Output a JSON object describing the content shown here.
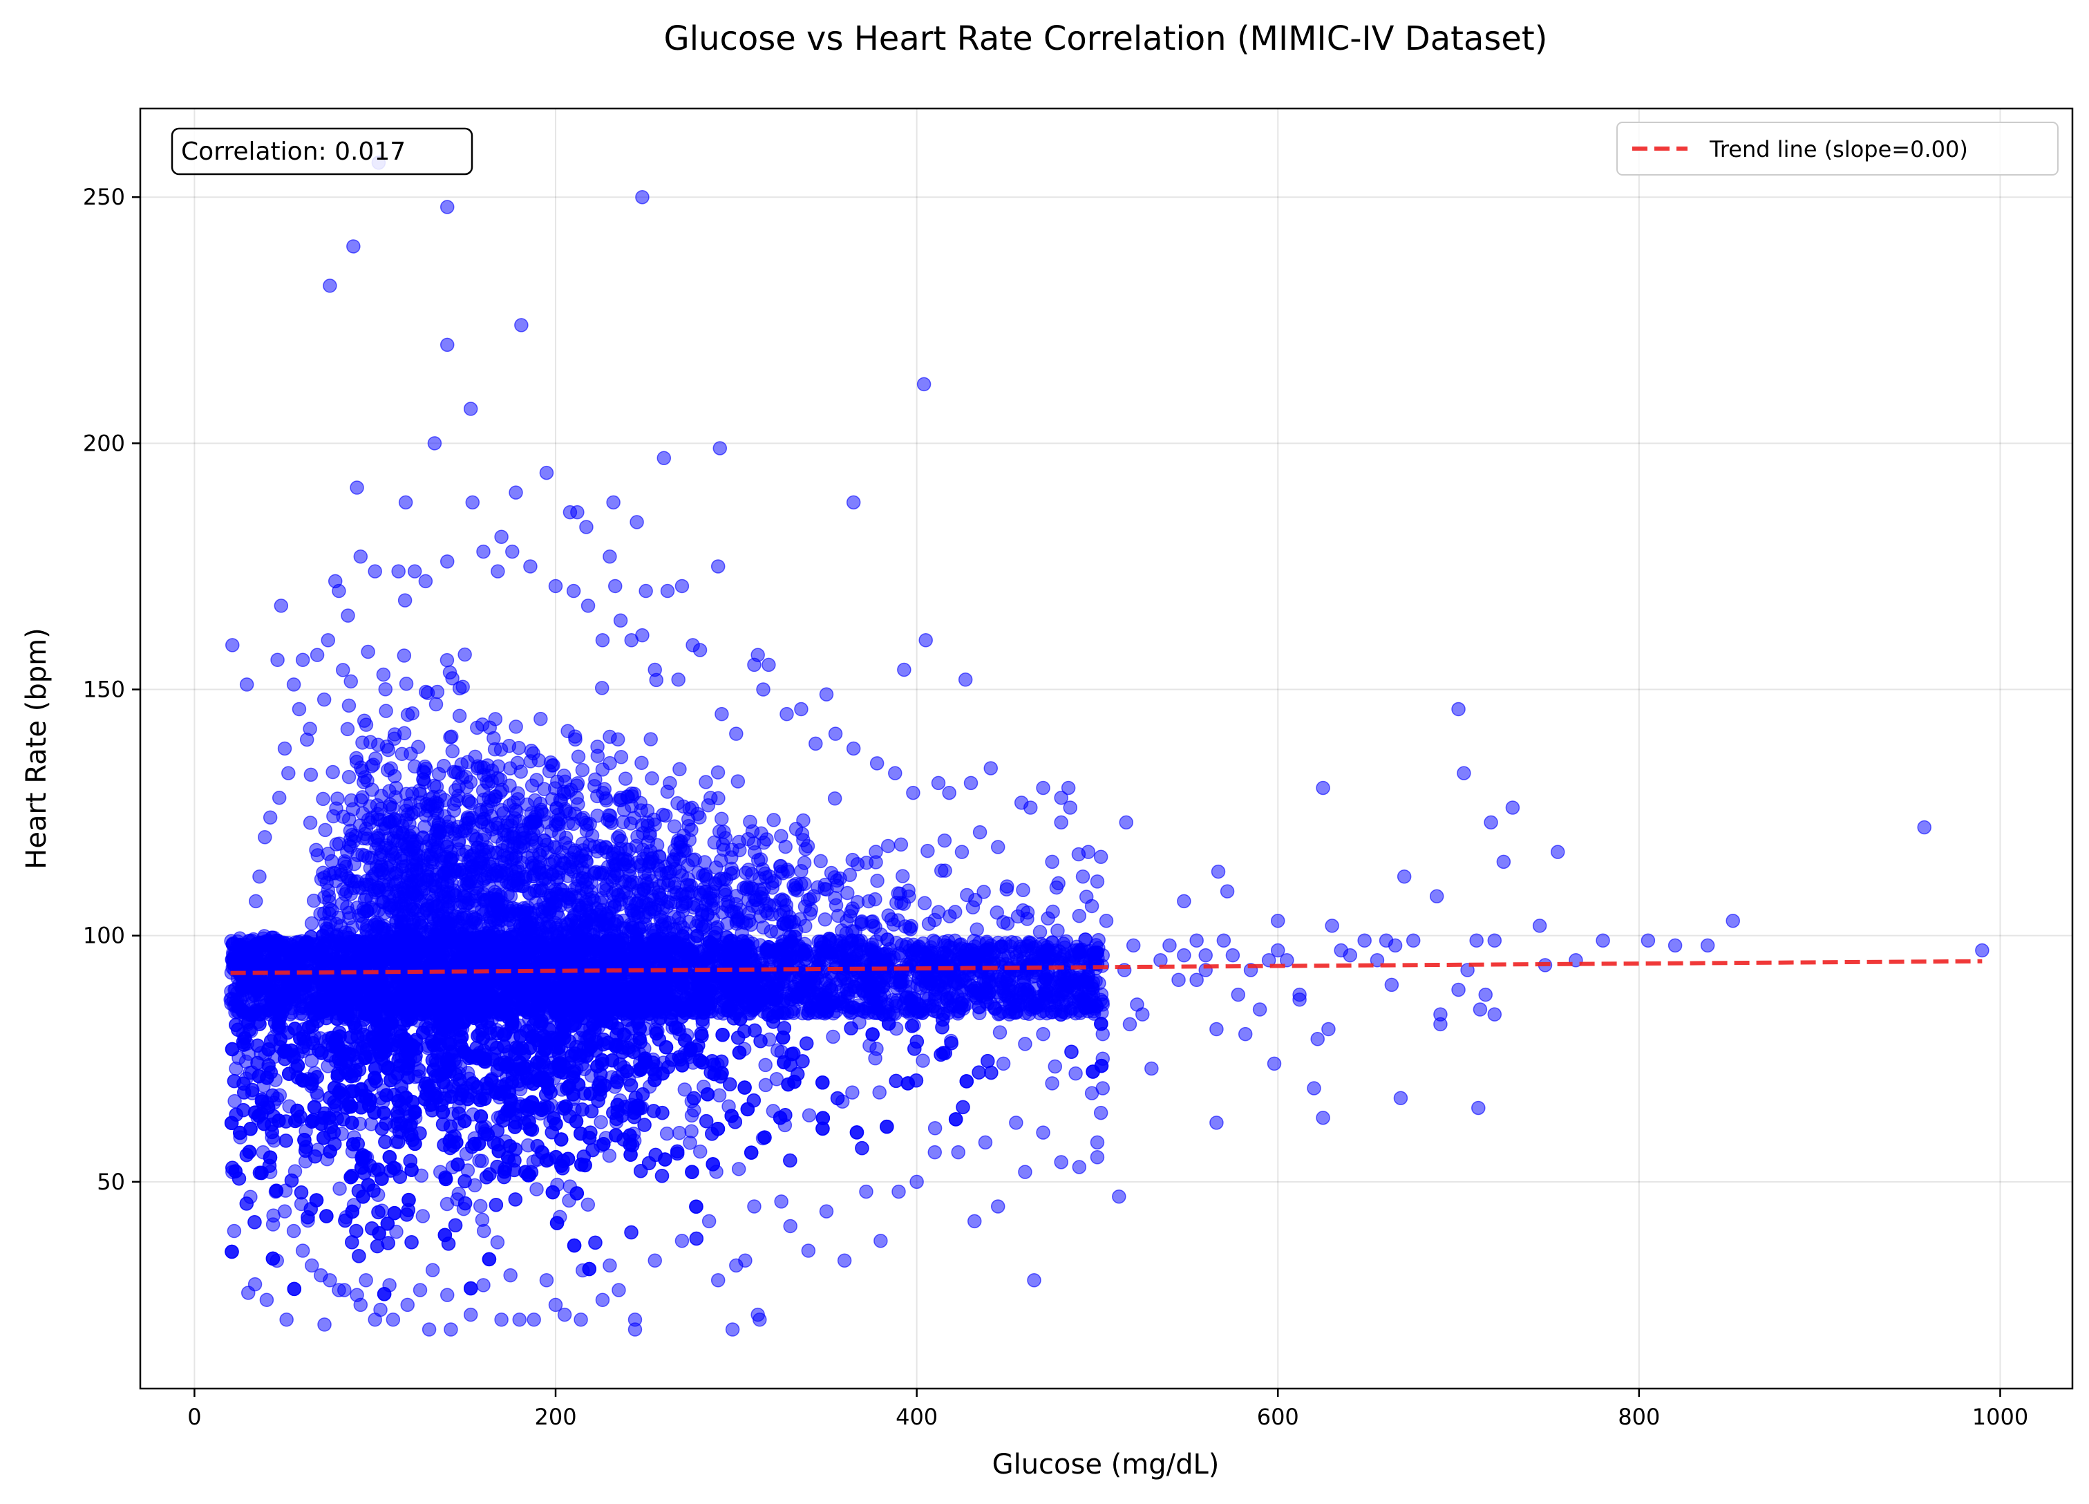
{
  "chart_data": {
    "type": "scatter",
    "title": "Glucose vs Heart Rate Correlation (MIMIC-IV Dataset)",
    "xlabel": "Glucose (mg/dL)",
    "ylabel": "Heart Rate (bpm)",
    "xlim": [
      -30,
      1040
    ],
    "ylim": [
      8,
      268
    ],
    "xticks": [
      0,
      200,
      400,
      600,
      800,
      1000
    ],
    "yticks": [
      50,
      100,
      150,
      200,
      250
    ],
    "grid": true,
    "legend_position": "top-right",
    "annotation": "Correlation: 0.017",
    "colors": {
      "points": "#0000ff",
      "trend": "#ee2222"
    },
    "series": [
      {
        "name": "Trend line (slope=0.00)",
        "kind": "trend",
        "x": [
          20,
          990
        ],
        "y": [
          92.4,
          94.8
        ]
      }
    ],
    "dense_cloud": {
      "x_range": [
        20,
        503
      ],
      "y_range": [
        20,
        100
      ],
      "capped_band_y": [
        84,
        100
      ],
      "description": "dense"
    },
    "points": [
      [
        102,
        257
      ],
      [
        140,
        248
      ],
      [
        248,
        250
      ],
      [
        88,
        240
      ],
      [
        75,
        232
      ],
      [
        181,
        224
      ],
      [
        140,
        220
      ],
      [
        153,
        207
      ],
      [
        133,
        200
      ],
      [
        404,
        212
      ],
      [
        291,
        199
      ],
      [
        260,
        197
      ],
      [
        90,
        191
      ],
      [
        195,
        194
      ],
      [
        208,
        186
      ],
      [
        212,
        186
      ],
      [
        217,
        183
      ],
      [
        365,
        188
      ],
      [
        117,
        188
      ],
      [
        232,
        188
      ],
      [
        154,
        188
      ],
      [
        178,
        190
      ],
      [
        245,
        184
      ],
      [
        170,
        181
      ],
      [
        21,
        159
      ],
      [
        29,
        151
      ],
      [
        46,
        156
      ],
      [
        48,
        167
      ],
      [
        290,
        175
      ],
      [
        405,
        160
      ],
      [
        427,
        152
      ],
      [
        393,
        154
      ],
      [
        315,
        150
      ],
      [
        350,
        149
      ],
      [
        270,
        171
      ],
      [
        262,
        170
      ],
      [
        250,
        170
      ],
      [
        233,
        171
      ],
      [
        200,
        171
      ],
      [
        140,
        176
      ],
      [
        92,
        177
      ],
      [
        100,
        174
      ],
      [
        516,
        123
      ],
      [
        548,
        107
      ],
      [
        567,
        113
      ],
      [
        572,
        109
      ],
      [
        600,
        103
      ],
      [
        625,
        130
      ],
      [
        630,
        102
      ],
      [
        670,
        112
      ],
      [
        688,
        108
      ],
      [
        700,
        146
      ],
      [
        703,
        133
      ],
      [
        718,
        123
      ],
      [
        725,
        115
      ],
      [
        730,
        126
      ],
      [
        755,
        117
      ],
      [
        745,
        102
      ],
      [
        852,
        103
      ],
      [
        958,
        122
      ],
      [
        990,
        97
      ],
      [
        820,
        98
      ],
      [
        838,
        98
      ],
      [
        805,
        99
      ],
      [
        780,
        99
      ],
      [
        765,
        95
      ],
      [
        748,
        94
      ],
      [
        720,
        99
      ],
      [
        710,
        99
      ],
      [
        700,
        89
      ],
      [
        690,
        84
      ],
      [
        690,
        82
      ],
      [
        712,
        85
      ],
      [
        715,
        88
      ],
      [
        720,
        84
      ],
      [
        705,
        93
      ],
      [
        675,
        99
      ],
      [
        665,
        98
      ],
      [
        660,
        99
      ],
      [
        655,
        95
      ],
      [
        648,
        99
      ],
      [
        640,
        96
      ],
      [
        635,
        97
      ],
      [
        628,
        81
      ],
      [
        622,
        79
      ],
      [
        620,
        69
      ],
      [
        625,
        63
      ],
      [
        612,
        88
      ],
      [
        612,
        87
      ],
      [
        605,
        95
      ],
      [
        600,
        97
      ],
      [
        598,
        74
      ],
      [
        590,
        85
      ],
      [
        585,
        93
      ],
      [
        582,
        80
      ],
      [
        578,
        88
      ],
      [
        575,
        96
      ],
      [
        570,
        99
      ],
      [
        566,
        81
      ],
      [
        566,
        62
      ],
      [
        560,
        96
      ],
      [
        555,
        99
      ],
      [
        548,
        96
      ],
      [
        545,
        91
      ],
      [
        540,
        98
      ],
      [
        535,
        95
      ],
      [
        530,
        73
      ],
      [
        525,
        84
      ],
      [
        522,
        86
      ],
      [
        518,
        82
      ],
      [
        515,
        93
      ],
      [
        512,
        47
      ],
      [
        520,
        98
      ],
      [
        555,
        91
      ],
      [
        595,
        95
      ],
      [
        668,
        67
      ],
      [
        711,
        65
      ],
      [
        663,
        90
      ],
      [
        560,
        93
      ],
      [
        465,
        30
      ],
      [
        432,
        42
      ],
      [
        423,
        56
      ],
      [
        445,
        45
      ],
      [
        460,
        52
      ],
      [
        470,
        60
      ],
      [
        480,
        54
      ],
      [
        490,
        53
      ],
      [
        500,
        58
      ],
      [
        500,
        55
      ],
      [
        380,
        38
      ],
      [
        360,
        34
      ],
      [
        340,
        36
      ],
      [
        330,
        41
      ],
      [
        313,
        22
      ],
      [
        312,
        23
      ],
      [
        298,
        20
      ],
      [
        300,
        33
      ],
      [
        305,
        34
      ],
      [
        290,
        30
      ],
      [
        285,
        42
      ],
      [
        244,
        20
      ],
      [
        244,
        22
      ],
      [
        235,
        28
      ],
      [
        226,
        26
      ],
      [
        214,
        22
      ],
      [
        205,
        23
      ],
      [
        200,
        25
      ],
      [
        188,
        22
      ],
      [
        180,
        22
      ],
      [
        170,
        22
      ],
      [
        153,
        23
      ],
      [
        142,
        20
      ],
      [
        130,
        20
      ],
      [
        118,
        25
      ],
      [
        110,
        22
      ],
      [
        100,
        22
      ],
      [
        103,
        24
      ],
      [
        92,
        25
      ],
      [
        83,
        28
      ],
      [
        72,
        21
      ],
      [
        51,
        22
      ],
      [
        40,
        26
      ],
      [
        22,
        40
      ],
      [
        21,
        52
      ],
      [
        23,
        73
      ],
      [
        20,
        87
      ],
      [
        25,
        95
      ],
      [
        430,
        131
      ],
      [
        441,
        134
      ],
      [
        458,
        127
      ],
      [
        470,
        130
      ],
      [
        480,
        128
      ],
      [
        485,
        126
      ],
      [
        492,
        112
      ],
      [
        495,
        117
      ],
      [
        502,
        116
      ],
      [
        500,
        111
      ],
      [
        480,
        123
      ],
      [
        475,
        115
      ],
      [
        463,
        126
      ],
      [
        484,
        130
      ],
      [
        450,
        110
      ],
      [
        445,
        118
      ],
      [
        435,
        121
      ],
      [
        425,
        117
      ],
      [
        418,
        129
      ],
      [
        412,
        131
      ],
      [
        398,
        129
      ],
      [
        388,
        133
      ],
      [
        378,
        135
      ],
      [
        365,
        138
      ],
      [
        355,
        141
      ],
      [
        344,
        139
      ],
      [
        336,
        146
      ],
      [
        328,
        145
      ],
      [
        318,
        155
      ],
      [
        312,
        157
      ],
      [
        310,
        155
      ],
      [
        300,
        141
      ],
      [
        292,
        145
      ],
      [
        280,
        158
      ],
      [
        276,
        159
      ],
      [
        268,
        152
      ],
      [
        255,
        154
      ],
      [
        248,
        161
      ],
      [
        242,
        160
      ],
      [
        236,
        164
      ],
      [
        226,
        160
      ],
      [
        218,
        167
      ],
      [
        210,
        170
      ],
      [
        230,
        177
      ],
      [
        160,
        178
      ],
      [
        168,
        174
      ],
      [
        176,
        178
      ],
      [
        186,
        175
      ],
      [
        122,
        174
      ],
      [
        113,
        174
      ],
      [
        128,
        172
      ],
      [
        80,
        170
      ],
      [
        85,
        165
      ],
      [
        78,
        172
      ],
      [
        68,
        157
      ],
      [
        60,
        156
      ],
      [
        55,
        151
      ],
      [
        64,
        142
      ],
      [
        58,
        146
      ],
      [
        74,
        160
      ],
      [
        50,
        138
      ],
      [
        52,
        133
      ],
      [
        47,
        128
      ],
      [
        42,
        124
      ],
      [
        39,
        120
      ],
      [
        36,
        112
      ],
      [
        34,
        107
      ],
      [
        33,
        97
      ],
      [
        31,
        92
      ],
      [
        28,
        88
      ],
      [
        27,
        80
      ],
      [
        30,
        76
      ],
      [
        32,
        68
      ],
      [
        35,
        63
      ],
      [
        38,
        56
      ],
      [
        42,
        52
      ],
      [
        45,
        48
      ],
      [
        50,
        44
      ],
      [
        55,
        40
      ],
      [
        60,
        36
      ],
      [
        65,
        33
      ],
      [
        70,
        31
      ],
      [
        75,
        30
      ],
      [
        80,
        28
      ],
      [
        90,
        27
      ],
      [
        95,
        30
      ],
      [
        108,
        29
      ],
      [
        125,
        28
      ],
      [
        140,
        27
      ],
      [
        160,
        29
      ],
      [
        175,
        31
      ],
      [
        195,
        30
      ],
      [
        215,
        32
      ],
      [
        230,
        33
      ],
      [
        255,
        34
      ],
      [
        270,
        38
      ],
      [
        310,
        45
      ],
      [
        325,
        46
      ],
      [
        350,
        44
      ],
      [
        372,
        48
      ],
      [
        390,
        48
      ],
      [
        400,
        50
      ],
      [
        410,
        56
      ],
      [
        438,
        58
      ],
      [
        455,
        62
      ],
      [
        475,
        70
      ],
      [
        488,
        72
      ],
      [
        497,
        68
      ],
      [
        502,
        64
      ],
      [
        470,
        80
      ],
      [
        460,
        78
      ],
      [
        448,
        74
      ],
      [
        483,
        88
      ],
      [
        492,
        90
      ],
      [
        478,
        101
      ],
      [
        490,
        104
      ],
      [
        497,
        106
      ],
      [
        505,
        103
      ],
      [
        503,
        96
      ],
      [
        503,
        86
      ],
      [
        503,
        80
      ],
      [
        503,
        75
      ],
      [
        503,
        69
      ]
    ]
  }
}
